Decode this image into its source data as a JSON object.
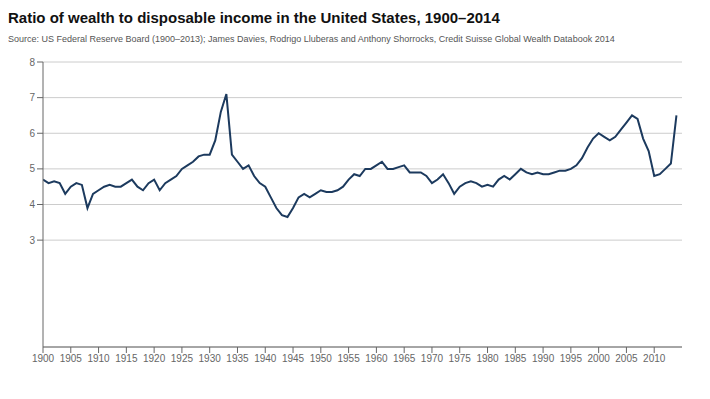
{
  "chart_data": {
    "type": "line",
    "title": "Ratio of wealth to disposable income in the United States, 1900–2014",
    "subtitle": "Source: US Federal Reserve Board (1900–2013); James Davies, Rodrigo Lluberas and Anthony Shorrocks, Credit Suisse Global Wealth Databook 2014",
    "x": [
      1900,
      1901,
      1902,
      1903,
      1904,
      1905,
      1906,
      1907,
      1908,
      1909,
      1910,
      1911,
      1912,
      1913,
      1914,
      1915,
      1916,
      1917,
      1918,
      1919,
      1920,
      1921,
      1922,
      1923,
      1924,
      1925,
      1926,
      1927,
      1928,
      1929,
      1930,
      1931,
      1932,
      1933,
      1934,
      1935,
      1936,
      1937,
      1938,
      1939,
      1940,
      1941,
      1942,
      1943,
      1944,
      1945,
      1946,
      1947,
      1948,
      1949,
      1950,
      1951,
      1952,
      1953,
      1954,
      1955,
      1956,
      1957,
      1958,
      1959,
      1960,
      1961,
      1962,
      1963,
      1964,
      1965,
      1966,
      1967,
      1968,
      1969,
      1970,
      1971,
      1972,
      1973,
      1974,
      1975,
      1976,
      1977,
      1978,
      1979,
      1980,
      1981,
      1982,
      1983,
      1984,
      1985,
      1986,
      1987,
      1988,
      1989,
      1990,
      1991,
      1992,
      1993,
      1994,
      1995,
      1996,
      1997,
      1998,
      1999,
      2000,
      2001,
      2002,
      2003,
      2004,
      2005,
      2006,
      2007,
      2008,
      2009,
      2010,
      2011,
      2012,
      2013,
      2014
    ],
    "values": [
      4.7,
      4.6,
      4.65,
      4.6,
      4.3,
      4.5,
      4.6,
      4.55,
      3.9,
      4.3,
      4.4,
      4.5,
      4.55,
      4.5,
      4.5,
      4.6,
      4.7,
      4.5,
      4.4,
      4.6,
      4.7,
      4.4,
      4.6,
      4.7,
      4.8,
      5.0,
      5.1,
      5.2,
      5.35,
      5.4,
      5.4,
      5.8,
      6.6,
      7.1,
      5.4,
      5.2,
      5.0,
      5.1,
      4.8,
      4.6,
      4.5,
      4.2,
      3.9,
      3.7,
      3.65,
      3.9,
      4.2,
      4.3,
      4.2,
      4.3,
      4.4,
      4.35,
      4.35,
      4.4,
      4.5,
      4.7,
      4.85,
      4.8,
      5.0,
      5.0,
      5.1,
      5.2,
      5.0,
      5.0,
      5.05,
      5.1,
      4.9,
      4.9,
      4.9,
      4.8,
      4.6,
      4.7,
      4.85,
      4.6,
      4.3,
      4.5,
      4.6,
      4.65,
      4.6,
      4.5,
      4.55,
      4.5,
      4.7,
      4.8,
      4.7,
      4.85,
      5.0,
      4.9,
      4.85,
      4.9,
      4.85,
      4.85,
      4.9,
      4.95,
      4.95,
      5.0,
      5.1,
      5.3,
      5.6,
      5.85,
      6.0,
      5.9,
      5.8,
      5.9,
      6.1,
      6.3,
      6.5,
      6.4,
      5.85,
      5.5,
      4.8,
      4.85,
      5.0,
      5.15,
      6.5
    ],
    "color": "#1c3a5e",
    "xlim": [
      1900,
      2015
    ],
    "xticks": [
      1900,
      1905,
      1910,
      1915,
      1920,
      1925,
      1930,
      1935,
      1940,
      1945,
      1950,
      1955,
      1960,
      1965,
      1970,
      1975,
      1980,
      1985,
      1990,
      1995,
      2000,
      2005,
      2010
    ],
    "ylim": [
      0,
      8
    ],
    "yticks": [
      3,
      4,
      5,
      6,
      7,
      8
    ],
    "grid": true
  }
}
